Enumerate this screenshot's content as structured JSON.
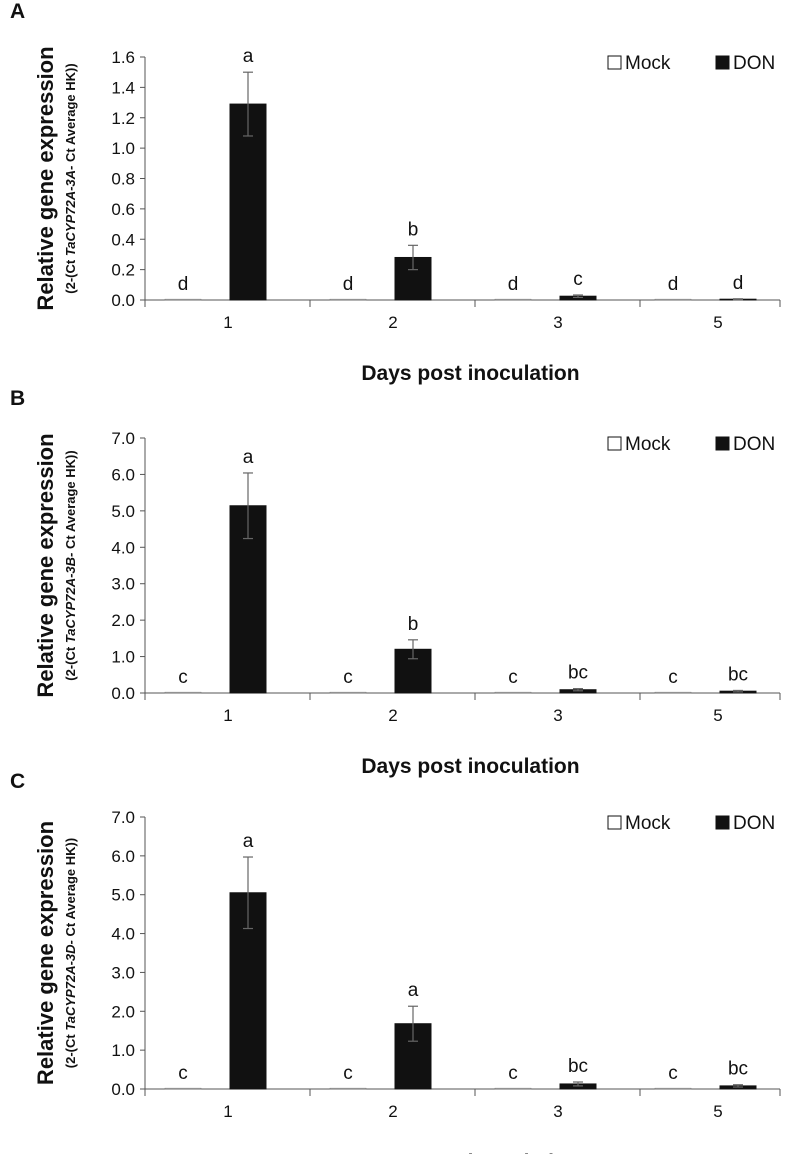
{
  "chart_data": [
    {
      "type": "bar",
      "panel_label": "A",
      "categories": [
        "1",
        "2",
        "3",
        "5"
      ],
      "xlabel": "Days post inoculation",
      "ylabel_main": "Relative gene expression",
      "ylabel_sub_pre": "(2-(Ct ",
      "ylabel_sub_gene": "TaCYP72A-3A-",
      "ylabel_sub_post": " Ct Average HK))",
      "ylim": [
        0,
        1.6
      ],
      "yticks": [
        "0.0",
        "0.2",
        "0.4",
        "0.6",
        "0.8",
        "1.0",
        "1.2",
        "1.4",
        "1.6"
      ],
      "legend_position": "top-right",
      "series": [
        {
          "name": "Mock",
          "color": "#ffffff",
          "values": [
            0.0,
            0.0,
            0.0,
            0.0
          ],
          "errors": [
            0,
            0,
            0,
            0
          ],
          "letters": [
            "d",
            "d",
            "d",
            "d"
          ]
        },
        {
          "name": "DON",
          "color": "#111111",
          "values": [
            1.29,
            0.28,
            0.025,
            0.005
          ],
          "errors": [
            0.21,
            0.08,
            0.008,
            0.003
          ],
          "letters": [
            "a",
            "b",
            "c",
            "d"
          ]
        }
      ]
    },
    {
      "type": "bar",
      "panel_label": "B",
      "categories": [
        "1",
        "2",
        "3",
        "5"
      ],
      "xlabel": "Days post inoculation",
      "ylabel_main": "Relative gene expression",
      "ylabel_sub_pre": "(2-(Ct ",
      "ylabel_sub_gene": "TaCYP72A-3B-",
      "ylabel_sub_post": " Ct Average HK))",
      "ylim": [
        0,
        7.0
      ],
      "yticks": [
        "0.0",
        "1.0",
        "2.0",
        "3.0",
        "4.0",
        "5.0",
        "6.0",
        "7.0"
      ],
      "legend_position": "top-right",
      "series": [
        {
          "name": "Mock",
          "color": "#ffffff",
          "values": [
            0.0,
            0.0,
            0.0,
            0.0
          ],
          "errors": [
            0,
            0,
            0,
            0
          ],
          "letters": [
            "c",
            "c",
            "c",
            "c"
          ]
        },
        {
          "name": "DON",
          "color": "#111111",
          "values": [
            5.14,
            1.2,
            0.09,
            0.05
          ],
          "errors": [
            0.9,
            0.26,
            0.03,
            0.02
          ],
          "letters": [
            "a",
            "b",
            "bc",
            "bc"
          ]
        }
      ]
    },
    {
      "type": "bar",
      "panel_label": "C",
      "categories": [
        "1",
        "2",
        "3",
        "5"
      ],
      "xlabel": "Days post inoculation",
      "ylabel_main": "Relative gene expression",
      "ylabel_sub_pre": "(2-(Ct ",
      "ylabel_sub_gene": "TaCYP72A-3D-",
      "ylabel_sub_post": " Ct Average HK))",
      "ylim": [
        0,
        7.0
      ],
      "yticks": [
        "0.0",
        "1.0",
        "2.0",
        "3.0",
        "4.0",
        "5.0",
        "6.0",
        "7.0"
      ],
      "legend_position": "top-right",
      "series": [
        {
          "name": "Mock",
          "color": "#ffffff",
          "values": [
            0.0,
            0.0,
            0.0,
            0.0
          ],
          "errors": [
            0,
            0,
            0,
            0
          ],
          "letters": [
            "c",
            "c",
            "c",
            "c"
          ]
        },
        {
          "name": "DON",
          "color": "#111111",
          "values": [
            5.05,
            1.68,
            0.13,
            0.08
          ],
          "errors": [
            0.92,
            0.45,
            0.05,
            0.03
          ],
          "letters": [
            "a",
            "a",
            "bc",
            "bc"
          ]
        }
      ]
    }
  ]
}
